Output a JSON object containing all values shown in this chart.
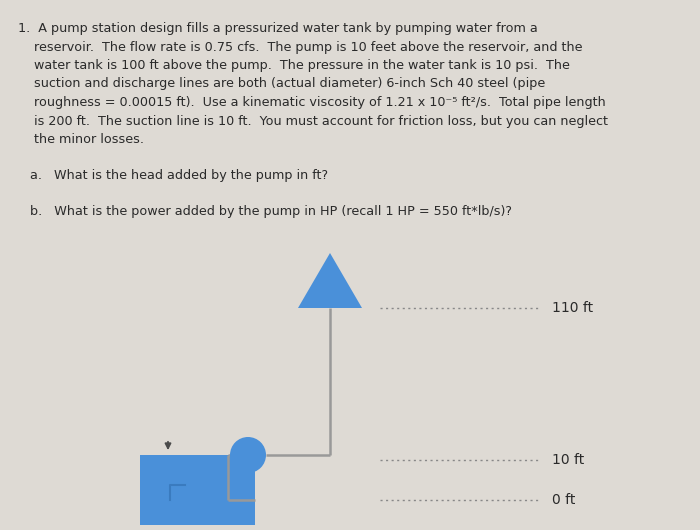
{
  "background_color": "#dedad4",
  "text_color": "#2a2a2a",
  "blue_color": "#4a90d9",
  "dark_gray": "#4a4a4a",
  "pipe_color": "#999999",
  "dotted_line_color": "#888888",
  "label_110": "110 ft",
  "label_10": "10 ft",
  "label_0": "0 ft",
  "question_a": "a.   What is the head added by the pump in ft?",
  "question_b": "b.   What is the power added by the pump in HP (recall 1 HP = 550 ft*lb/s)?"
}
